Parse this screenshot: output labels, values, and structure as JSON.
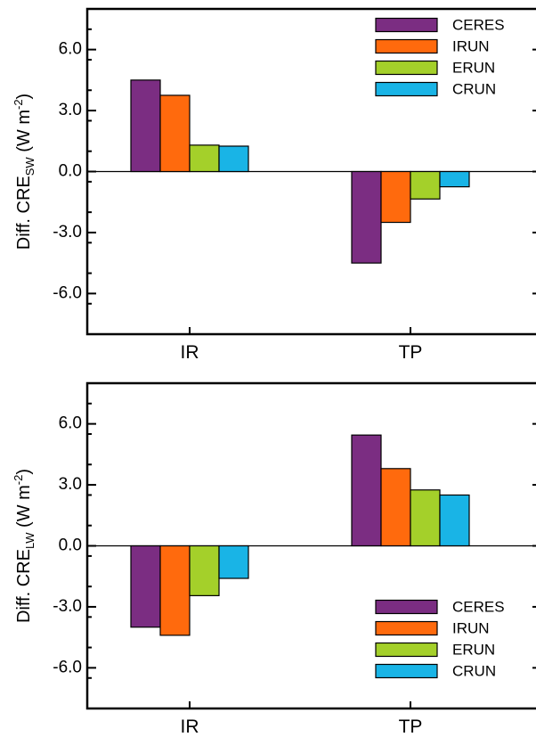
{
  "chart_data": [
    {
      "type": "bar",
      "categories": [
        "IR",
        "TP"
      ],
      "ylabel": {
        "prefix": "Diff. CRE",
        "subscript": "SW",
        "units": " (W m",
        "units_sup": "-2",
        "units_end": ")"
      },
      "ylim": [
        -8,
        8
      ],
      "yticks": [
        6.0,
        3.0,
        0.0,
        -3.0,
        -6.0
      ],
      "ytick_labels": [
        "6.0",
        "3.0",
        "0.0",
        "-3.0",
        "-6.0"
      ],
      "legend_position": "top-right",
      "series": [
        {
          "name": "CERES",
          "color": "#7B2D82",
          "values": [
            4.5,
            -4.5
          ]
        },
        {
          "name": "IRUN",
          "color": "#FF6A0D",
          "values": [
            3.75,
            -2.5
          ]
        },
        {
          "name": "ERUN",
          "color": "#A4D02A",
          "values": [
            1.3,
            -1.35
          ]
        },
        {
          "name": "CRUN",
          "color": "#19B4E6",
          "values": [
            1.25,
            -0.75
          ]
        }
      ]
    },
    {
      "type": "bar",
      "categories": [
        "IR",
        "TP"
      ],
      "ylabel": {
        "prefix": "Diff. CRE",
        "subscript": "LW",
        "units": " (W m",
        "units_sup": "-2",
        "units_end": ")"
      },
      "ylim": [
        -8,
        8
      ],
      "yticks": [
        6.0,
        3.0,
        0.0,
        -3.0,
        -6.0
      ],
      "ytick_labels": [
        "6.0",
        "3.0",
        "0.0",
        "-3.0",
        "-6.0"
      ],
      "legend_position": "bottom-right",
      "series": [
        {
          "name": "CERES",
          "color": "#7B2D82",
          "values": [
            -4.0,
            5.45
          ]
        },
        {
          "name": "IRUN",
          "color": "#FF6A0D",
          "values": [
            -4.4,
            3.8
          ]
        },
        {
          "name": "ERUN",
          "color": "#A4D02A",
          "values": [
            -2.45,
            2.75
          ]
        },
        {
          "name": "CRUN",
          "color": "#19B4E6",
          "values": [
            -1.6,
            2.5
          ]
        }
      ]
    }
  ]
}
